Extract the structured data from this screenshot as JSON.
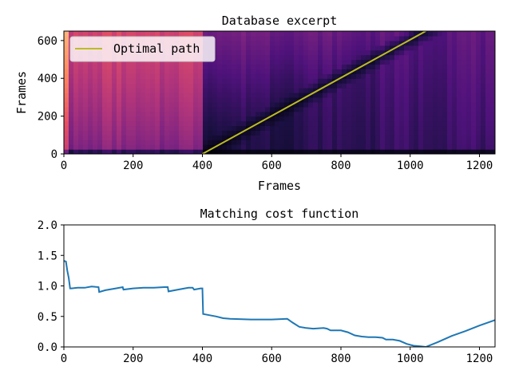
{
  "chart_data": [
    {
      "type": "heatmap",
      "title": "Database excerpt",
      "xlabel": "Frames",
      "ylabel": "Frames",
      "xlim": [
        0,
        1245
      ],
      "ylim": [
        0,
        650
      ],
      "xticks": [
        0,
        200,
        400,
        600,
        800,
        1000,
        1200
      ],
      "yticks": [
        0,
        200,
        400,
        600
      ],
      "colormap": "magma",
      "legend": {
        "placement": "top-left",
        "entries": [
          {
            "label": "Optimal path",
            "color": "#bcbd22"
          }
        ]
      },
      "series": [
        {
          "name": "Optimal path",
          "type": "line",
          "x": [
            400,
            1045
          ],
          "y": [
            0,
            650
          ]
        }
      ]
    },
    {
      "type": "line",
      "title": "Matching cost function",
      "xlabel": "",
      "ylabel": "",
      "xlim": [
        0,
        1245
      ],
      "ylim": [
        0,
        2.0
      ],
      "xticks": [
        0,
        200,
        400,
        600,
        800,
        1000,
        1200
      ],
      "yticks": [
        "0.0",
        "0.5",
        "1.0",
        "1.5",
        "2.0"
      ],
      "color": "#1f77b4",
      "series": [
        {
          "x": [
            0,
            6,
            10,
            14,
            18,
            22,
            40,
            60,
            80,
            100,
            102,
            120,
            150,
            170,
            172,
            200,
            230,
            260,
            290,
            300,
            302,
            330,
            360,
            372,
            376,
            395,
            400,
            402,
            420,
            440,
            460,
            480,
            540,
            600,
            645,
            660,
            680,
            700,
            720,
            750,
            760,
            770,
            780,
            800,
            820,
            840,
            860,
            880,
            900,
            920,
            930,
            950,
            970,
            990,
            1010,
            1030,
            1045,
            1080,
            1120,
            1160,
            1200,
            1245
          ],
          "y": [
            1.41,
            1.4,
            1.25,
            1.13,
            0.96,
            0.96,
            0.97,
            0.97,
            0.99,
            0.98,
            0.9,
            0.93,
            0.96,
            0.98,
            0.94,
            0.96,
            0.97,
            0.97,
            0.98,
            0.98,
            0.91,
            0.94,
            0.97,
            0.97,
            0.94,
            0.96,
            0.96,
            0.54,
            0.52,
            0.5,
            0.47,
            0.46,
            0.45,
            0.45,
            0.46,
            0.4,
            0.33,
            0.31,
            0.3,
            0.31,
            0.3,
            0.27,
            0.27,
            0.27,
            0.24,
            0.19,
            0.17,
            0.16,
            0.16,
            0.15,
            0.12,
            0.12,
            0.1,
            0.05,
            0.02,
            0.01,
            0.0,
            0.08,
            0.18,
            0.26,
            0.35,
            0.44
          ]
        }
      ]
    }
  ]
}
